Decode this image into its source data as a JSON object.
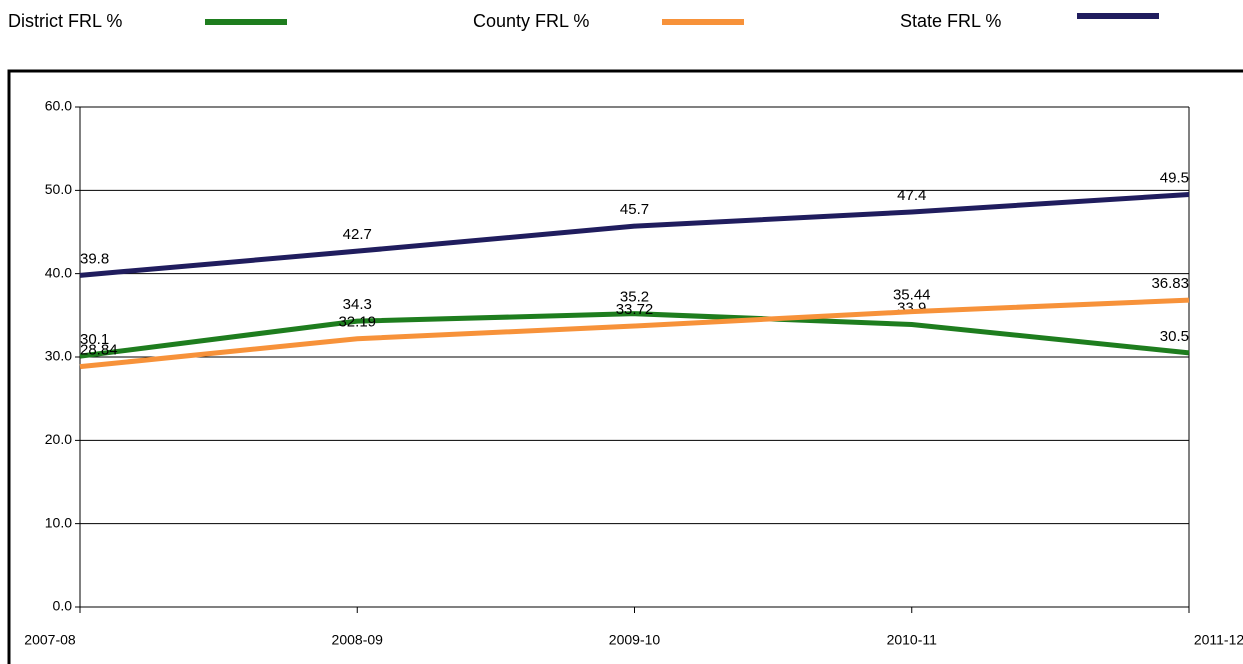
{
  "chart_data": {
    "type": "line",
    "categories": [
      "2007-08",
      "2008-09",
      "2009-10",
      "2010-11",
      "2011-12"
    ],
    "series": [
      {
        "name": "District FRL %",
        "color": "#1e7d1e",
        "values": [
          30.1,
          34.3,
          35.2,
          33.9,
          30.5
        ]
      },
      {
        "name": "County FRL %",
        "color": "#f7923a",
        "values": [
          28.84,
          32.19,
          33.72,
          35.44,
          36.83
        ]
      },
      {
        "name": "State FRL %",
        "color": "#201d5e",
        "values": [
          39.8,
          42.7,
          45.7,
          47.4,
          49.5
        ]
      }
    ],
    "ylim": [
      0,
      60
    ],
    "yticks": [
      {
        "value": 0,
        "label": "0.0"
      },
      {
        "value": 10,
        "label": "10.0"
      },
      {
        "value": 20,
        "label": "20.0"
      },
      {
        "value": 30,
        "label": "30.0"
      },
      {
        "value": 40,
        "label": "40.0"
      },
      {
        "value": 50,
        "label": "50.0"
      },
      {
        "value": 60,
        "label": "60.0"
      }
    ],
    "grid": true,
    "legend": "top"
  }
}
